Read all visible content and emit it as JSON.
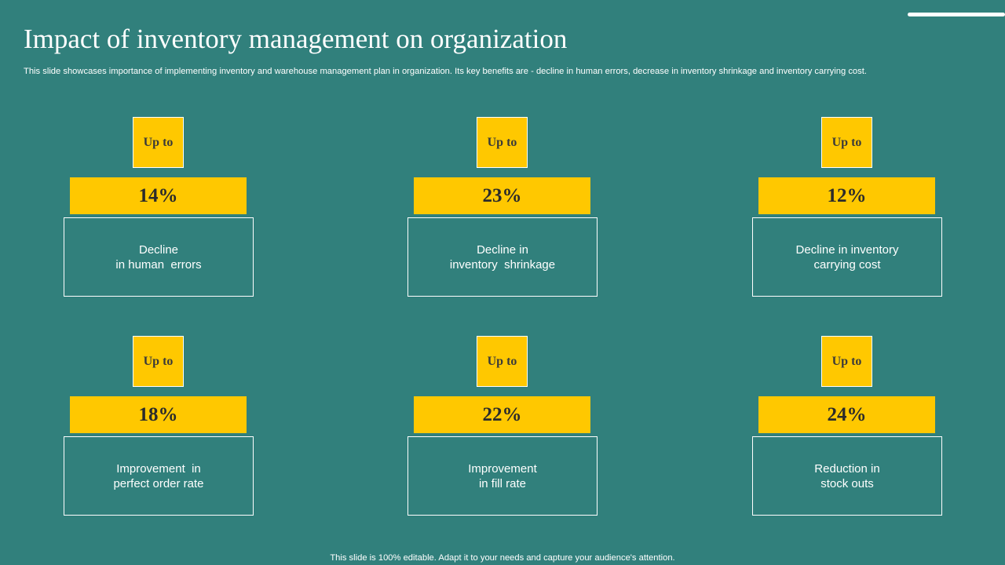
{
  "slide": {
    "title": "Impact of inventory management on organization",
    "subtitle": "This slide showcases importance of implementing inventory and warehouse management plan in organization. Its key benefits are - decline in human errors, decrease in inventory shrinkage and inventory carrying cost.",
    "footer": "This slide is 100% editable. Adapt it to your needs and capture your audience's attention."
  },
  "cards": [
    {
      "upto": "Up to",
      "percent": "14%",
      "line1": "Decline",
      "line2": "in human  errors"
    },
    {
      "upto": "Up to",
      "percent": "23%",
      "line1": "Decline in",
      "line2": "inventory  shrinkage"
    },
    {
      "upto": "Up to",
      "percent": "12%",
      "line1": "Decline in inventory",
      "line2": "carrying cost"
    },
    {
      "upto": "Up to",
      "percent": "18%",
      "line1": "Improvement  in",
      "line2": "perfect order rate"
    },
    {
      "upto": "Up to",
      "percent": "22%",
      "line1": "Improvement",
      "line2": "in fill rate"
    },
    {
      "upto": "Up to",
      "percent": "24%",
      "line1": "Reduction in",
      "line2": "stock outs"
    }
  ],
  "colors": {
    "background": "#31807c",
    "accent": "#ffc800"
  }
}
